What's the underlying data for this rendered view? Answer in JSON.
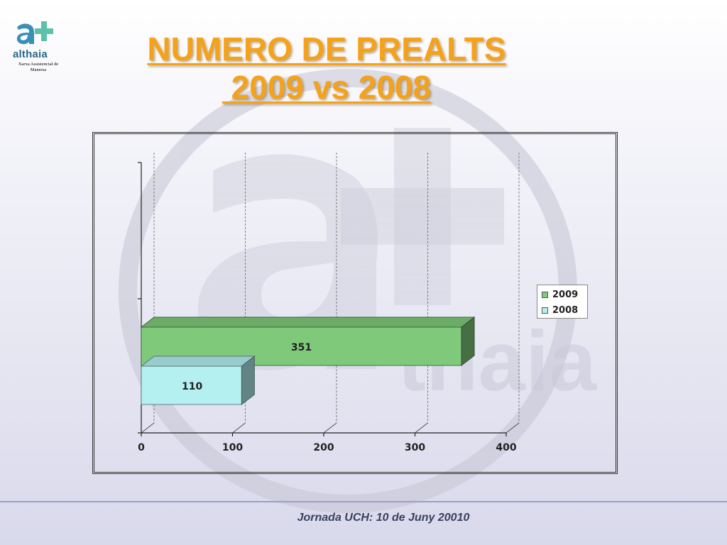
{
  "logo": {
    "brand": "althaia",
    "subtitle": "Xarxa Assistencial de Manresa",
    "colors": {
      "a": "#3a8fb5",
      "plus": "#5cc1a9"
    }
  },
  "title": {
    "line1": "NUMERO DE PREALTS",
    "line2": " 2009 vs 2008"
  },
  "footer": {
    "text": "Jornada UCH: 10 de Juny 20010"
  },
  "chart_data": {
    "type": "bar",
    "orientation": "horizontal",
    "style": "3d",
    "series": [
      {
        "name": "2009",
        "value": 351,
        "color": "#7fc97a"
      },
      {
        "name": "2008",
        "value": 110,
        "color": "#b4f0f0"
      }
    ],
    "xlim": [
      0,
      400
    ],
    "xticks": [
      "0",
      "100",
      "200",
      "300",
      "400"
    ],
    "grid": "vertical dashed",
    "legend_position": "right"
  },
  "legend": {
    "items": [
      {
        "label": "2009",
        "color": "#7fc97a"
      },
      {
        "label": "2008",
        "color": "#b4f0f0"
      }
    ]
  }
}
